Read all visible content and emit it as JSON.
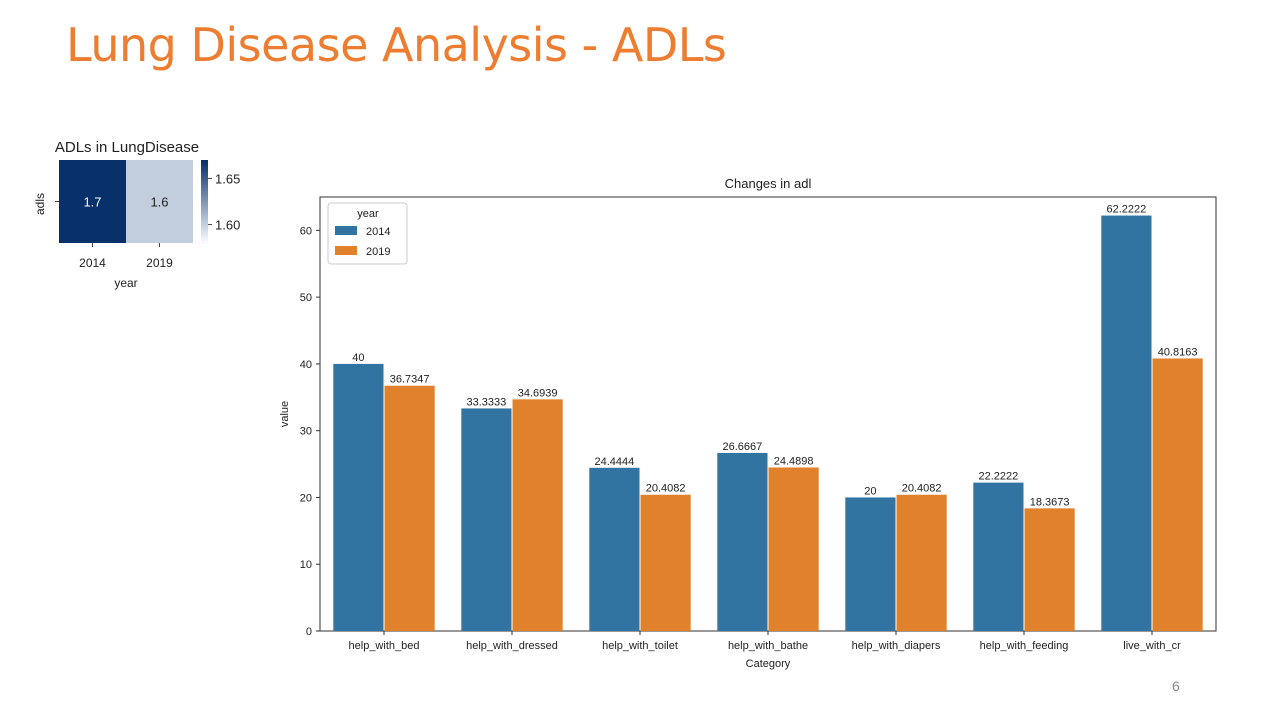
{
  "slide": {
    "title": "Lung Disease Analysis - ADLs",
    "page_number": "6"
  },
  "colors": {
    "title": "#ED7D31",
    "series_2014": "#3274A1",
    "series_2019": "#E1812C",
    "heat_high": "#08306B",
    "heat_low": "#F7FBFF"
  },
  "chart_data": [
    {
      "type": "heatmap",
      "title": "ADLs in LungDisease",
      "xlabel": "year",
      "ylabel": "adls",
      "x": [
        "2014",
        "2019"
      ],
      "y": [
        "adls"
      ],
      "values": [
        [
          1.7,
          1.6
        ]
      ],
      "value_labels": [
        "1.7",
        "1.6"
      ],
      "colorbar": {
        "range": [
          1.58,
          1.67
        ],
        "ticks": [
          1.6,
          1.65
        ],
        "tick_labels": [
          "1.60",
          "1.65"
        ],
        "colormap": "Blues"
      }
    },
    {
      "type": "bar",
      "title": "Changes in adl",
      "xlabel": "Category",
      "ylabel": "value",
      "ylim": [
        0,
        65
      ],
      "yticks": [
        0,
        10,
        20,
        30,
        40,
        50,
        60
      ],
      "categories": [
        "help_with_bed",
        "help_with_dressed",
        "help_with_toilet",
        "help_with_bathe",
        "help_with_diapers",
        "help_with_feeding",
        "live_with_cr"
      ],
      "legend": {
        "title": "year",
        "position": "top-left"
      },
      "grid": false,
      "series": [
        {
          "name": "2014",
          "values": [
            40,
            33.3333,
            24.4444,
            26.6667,
            20,
            22.2222,
            62.2222
          ],
          "labels": [
            "40",
            "33.3333",
            "24.4444",
            "26.6667",
            "20",
            "22.2222",
            "62.2222"
          ]
        },
        {
          "name": "2019",
          "values": [
            36.7347,
            34.6939,
            20.4082,
            24.4898,
            20.4082,
            18.3673,
            40.8163
          ],
          "labels": [
            "36.7347",
            "34.6939",
            "20.4082",
            "24.4898",
            "20.4082",
            "18.3673",
            "40.8163"
          ]
        }
      ]
    }
  ]
}
